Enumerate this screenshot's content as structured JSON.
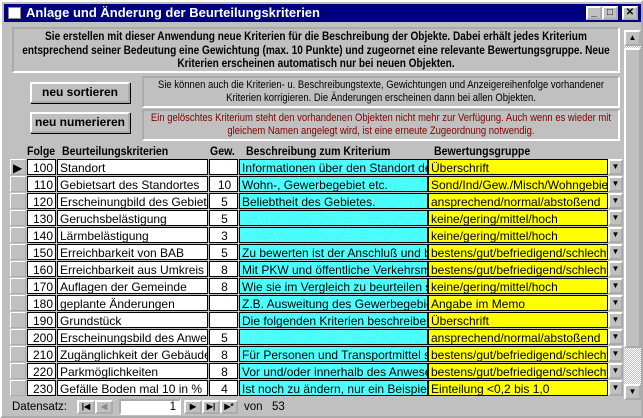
{
  "window": {
    "title": "Anlage und Änderung der Beurteilungskriterien",
    "minimize": "_",
    "maximize": "□",
    "close": "✕"
  },
  "info": {
    "text": "Sie erstellen mit dieser Anwendung neue Kriterien für die Beschreibung der Objekte. Dabei erhält jedes Kriterium entsprechend seiner Bedeutung eine Gewichtung (max. 10 Punkte) und zugeornet eine relevante Bewertungsgruppe. Neue Kriterien erscheinen automatisch nur bei neuen Objekten."
  },
  "note1": "Sie können auch die Kriterien- u. Beschreibungstexte, Gewichtungen und Anzeigereihenfolge vorhandener Kriterien korrigieren. Die Änderungen erscheinen dann bei allen Objekten.",
  "note2": "Ein gelöschtes Kriterium steht den vorhandenen Objekten nicht mehr zur Verfügung. Auch wenn es wieder mit gleichem Namen angelegt wird, ist eine erneute Zugeordnung notwendig.",
  "note2_color": "#800000",
  "buttons": {
    "sort": "neu sortieren",
    "number": "neu numerieren"
  },
  "columns": {
    "folge": "Folge",
    "krit": "Beurteilungskriterien",
    "gew": "Gew.",
    "besch": "Beschreibung zum Kriterium",
    "bew": "Bewertungsgruppe"
  },
  "rows": [
    {
      "folge": "100",
      "krit": "Standort",
      "gew": "",
      "besch": "Informationen über den Standort des Ob",
      "bew": "Überschrift"
    },
    {
      "folge": "110",
      "krit": "Gebietsart des Standortes",
      "gew": "10",
      "besch": "Wohn-, Gewerbegebiet etc.",
      "bew": "Sond/Ind/Gew./Misch/Wohngebiet"
    },
    {
      "folge": "120",
      "krit": "Erscheinungbild des Gebietes",
      "gew": "5",
      "besch": "Beliebtheit des Gebietes.",
      "bew": "ansprechend/normal/abstoßend"
    },
    {
      "folge": "130",
      "krit": "Geruchsbelästigung",
      "gew": "5",
      "besch": "",
      "bew": "keine/gering/mittel/hoch"
    },
    {
      "folge": "140",
      "krit": "Lärmbelästigung",
      "gew": "3",
      "besch": "",
      "bew": "keine/gering/mittel/hoch"
    },
    {
      "folge": "150",
      "krit": "Erreichbarkeit von BAB",
      "gew": "5",
      "besch": "Zu bewerten ist der Anschluß und beso",
      "bew": "bestens/gut/befriedigend/schlecht"
    },
    {
      "folge": "160",
      "krit": "Erreichbarkeit aus Umkreis",
      "gew": "8",
      "besch": "Mit PKW und öffentliche Verkehrsmittel.",
      "bew": "bestens/gut/befriedigend/schlecht"
    },
    {
      "folge": "170",
      "krit": "Auflagen der Gemeinde",
      "gew": "8",
      "besch": "Wie sie im Vergleich zu beurteilen sind.",
      "bew": "keine/gering/mittel/hoch"
    },
    {
      "folge": "180",
      "krit": "geplante Änderungen",
      "gew": "",
      "besch": "Z.B. Ausweitung des Gewerbegebietes.",
      "bew": "Angabe im Memo"
    },
    {
      "folge": "190",
      "krit": "Grundstück",
      "gew": "",
      "besch": "Die folgenden Kriterien beschreiben näh",
      "bew": "Überschrift"
    },
    {
      "folge": "200",
      "krit": "Erscheinungsbild des Anwesens",
      "gew": "5",
      "besch": "",
      "bew": "ansprechend/normal/abstoßend"
    },
    {
      "folge": "210",
      "krit": "Zugänglichkeit der Gebäude",
      "gew": "8",
      "besch": "Für Personen und Transportmittel sowie",
      "bew": "bestens/gut/befriedigend/schlecht"
    },
    {
      "folge": "220",
      "krit": "Parkmöglichkeiten",
      "gew": "8",
      "besch": "Vor und/oder innerhalb des Anwesens.",
      "bew": "bestens/gut/befriedigend/schlecht"
    },
    {
      "folge": "230",
      "krit": "Gefälle Boden mal 10 in %",
      "gew": "4",
      "besch": "Ist noch zu ändern, nur ein Beispiel.",
      "bew": "Einteilung <0,2 bis 1,0"
    }
  ],
  "nav": {
    "label": "Datensatz:",
    "current": "1",
    "of": "von",
    "total": "53"
  },
  "colors": {
    "title_bar": "#000080",
    "description": "#33ffff",
    "group": "#ffff00"
  }
}
